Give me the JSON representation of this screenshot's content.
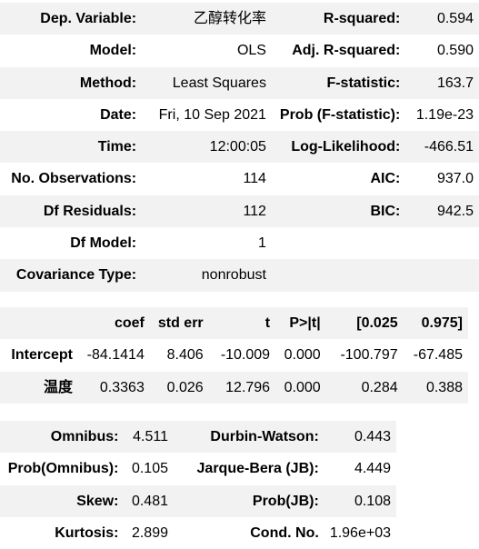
{
  "summary": {
    "rows": [
      {
        "k1": "Dep. Variable:",
        "v1": "乙醇转化率",
        "k2": "R-squared:",
        "v2": "0.594"
      },
      {
        "k1": "Model:",
        "v1": "OLS",
        "k2": "Adj. R-squared:",
        "v2": "0.590"
      },
      {
        "k1": "Method:",
        "v1": "Least Squares",
        "k2": "F-statistic:",
        "v2": "163.7"
      },
      {
        "k1": "Date:",
        "v1": "Fri, 10 Sep 2021",
        "k2": "Prob (F-statistic):",
        "v2": "1.19e-23"
      },
      {
        "k1": "Time:",
        "v1": "12:00:05",
        "k2": "Log-Likelihood:",
        "v2": "-466.51"
      },
      {
        "k1": "No. Observations:",
        "v1": "114",
        "k2": "AIC:",
        "v2": "937.0"
      },
      {
        "k1": "Df Residuals:",
        "v1": "112",
        "k2": "BIC:",
        "v2": "942.5"
      },
      {
        "k1": "Df Model:",
        "v1": "1",
        "k2": "",
        "v2": ""
      },
      {
        "k1": "Covariance Type:",
        "v1": "nonrobust",
        "k2": "",
        "v2": ""
      }
    ]
  },
  "coefficients": {
    "headers": [
      "",
      "coef",
      "std err",
      "t",
      "P>|t|",
      "[0.025",
      "0.975]"
    ],
    "rows": [
      [
        "Intercept",
        "-84.1414",
        "8.406",
        "-10.009",
        "0.000",
        "-100.797",
        "-67.485"
      ],
      [
        "温度",
        "0.3363",
        "0.026",
        "12.796",
        "0.000",
        "0.284",
        "0.388"
      ]
    ]
  },
  "diagnostics": {
    "rows": [
      {
        "k1": "Omnibus:",
        "v1": "4.511",
        "k2": "Durbin-Watson:",
        "v2": "0.443"
      },
      {
        "k1": "Prob(Omnibus):",
        "v1": "0.105",
        "k2": "Jarque-Bera (JB):",
        "v2": "4.449"
      },
      {
        "k1": "Skew:",
        "v1": "0.481",
        "k2": "Prob(JB):",
        "v2": "0.108"
      },
      {
        "k1": "Kurtosis:",
        "v1": "2.899",
        "k2": "Cond. No.",
        "v2": "1.96e+03"
      }
    ]
  }
}
